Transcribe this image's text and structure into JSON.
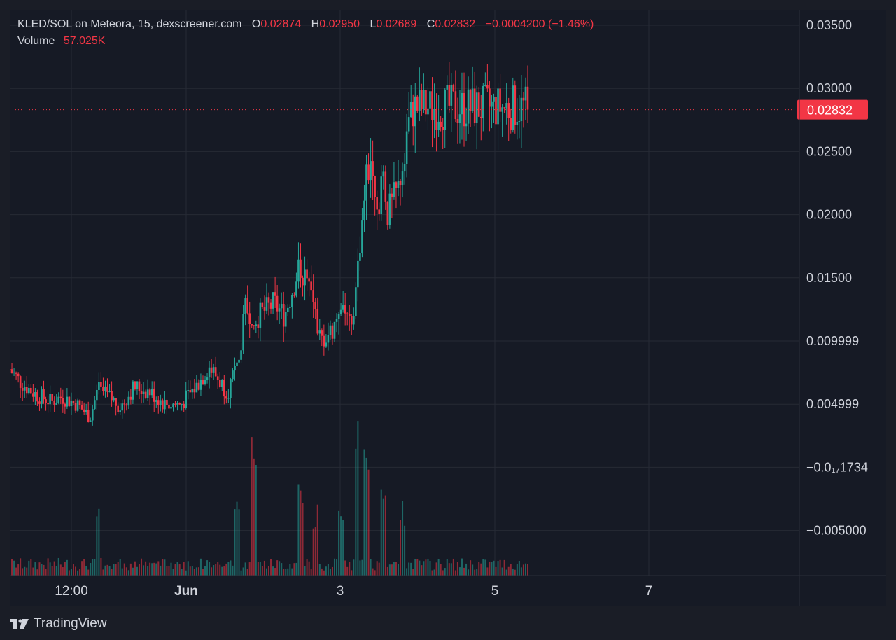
{
  "legend": {
    "symbol": "KLED/SOL on Meteora, 15, dexscreener.com",
    "o_label": "O",
    "o_value": "0.02874",
    "h_label": "H",
    "h_value": "0.02950",
    "l_label": "L",
    "l_value": "0.02689",
    "c_label": "C",
    "c_value": "0.02832",
    "change": "−0.0004200 (−1.46%)",
    "volume_label": "Volume",
    "volume_value": "57.025K"
  },
  "last_price_label": "0.02832",
  "footer": {
    "brand": "TradingView"
  },
  "colors": {
    "up": "#26a69a",
    "down": "#f23645",
    "background": "#161a25",
    "grid": "#262a35",
    "text": "#d1d4dc"
  },
  "chart_data": {
    "type": "candlestick",
    "grid": true,
    "price_ticks": [
      "0.03500",
      "0.03000",
      "0.02500",
      "0.02000",
      "0.01500",
      "0.009999",
      "0.004999",
      "−0.0₁₇1734",
      "−0.005000"
    ],
    "time_ticks": [
      "12:00",
      "Jun",
      "3",
      "5",
      "7"
    ],
    "y_range": [
      -0.0068,
      0.0358
    ],
    "last_price": 0.02832,
    "price_path": [
      [
        0,
        0.0078
      ],
      [
        0.02,
        0.0068
      ],
      [
        0.05,
        0.0058
      ],
      [
        0.08,
        0.0052
      ],
      [
        0.1,
        0.0056
      ],
      [
        0.13,
        0.005
      ],
      [
        0.155,
        0.004
      ],
      [
        0.17,
        0.0062
      ],
      [
        0.19,
        0.0056
      ],
      [
        0.215,
        0.0048
      ],
      [
        0.24,
        0.0064
      ],
      [
        0.27,
        0.006
      ],
      [
        0.3,
        0.005
      ],
      [
        0.33,
        0.005
      ],
      [
        0.36,
        0.0064
      ],
      [
        0.385,
        0.008
      ],
      [
        0.42,
        0.006
      ],
      [
        0.44,
        0.008
      ],
      [
        0.455,
        0.0125
      ],
      [
        0.48,
        0.012
      ],
      [
        0.51,
        0.013
      ],
      [
        0.53,
        0.012
      ],
      [
        0.56,
        0.016
      ],
      [
        0.58,
        0.014
      ],
      [
        0.6,
        0.01
      ],
      [
        0.625,
        0.011
      ],
      [
        0.64,
        0.0135
      ],
      [
        0.66,
        0.0105
      ],
      [
        0.67,
        0.015
      ],
      [
        0.685,
        0.022
      ],
      [
        0.7,
        0.025
      ],
      [
        0.71,
        0.02
      ],
      [
        0.72,
        0.024
      ],
      [
        0.73,
        0.02
      ],
      [
        0.75,
        0.022
      ],
      [
        0.765,
        0.0265
      ],
      [
        0.78,
        0.0285
      ]
    ],
    "volume_spikes": [
      [
        0.17,
        0.12
      ],
      [
        0.44,
        0.14
      ],
      [
        0.47,
        0.22
      ],
      [
        0.56,
        0.17
      ],
      [
        0.59,
        0.12
      ],
      [
        0.64,
        0.11
      ],
      [
        0.67,
        0.28
      ],
      [
        0.69,
        0.22
      ],
      [
        0.72,
        0.15
      ],
      [
        0.76,
        0.12
      ]
    ]
  }
}
